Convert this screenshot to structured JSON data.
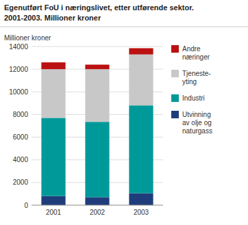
{
  "chart_data": {
    "type": "bar",
    "stacked": true,
    "title": "Egenutført FoU i næringslivet, etter utførende sektor.",
    "subtitle": "2001-2003. Millioner kroner",
    "ylabel": "Millioner kroner",
    "categories": [
      "2001",
      "2002",
      "2003"
    ],
    "series": [
      {
        "name": "Utvinning\nav olje og\nnaturgass",
        "color": "#1f3d7a",
        "values": [
          800,
          700,
          1050
        ]
      },
      {
        "name": "Industri",
        "color": "#009999",
        "values": [
          6900,
          6650,
          7750
        ]
      },
      {
        "name": "Tjeneste-\nyting",
        "color": "#c8c8c8",
        "values": [
          4300,
          4650,
          4500
        ]
      },
      {
        "name": "Andre\nnæringer",
        "color": "#bb1111",
        "values": [
          600,
          400,
          550
        ]
      }
    ],
    "ylim": [
      0,
      14000
    ],
    "yticks": [
      0,
      2000,
      4000,
      6000,
      8000,
      10000,
      12000,
      14000
    ],
    "grid": true,
    "legend": "right"
  }
}
